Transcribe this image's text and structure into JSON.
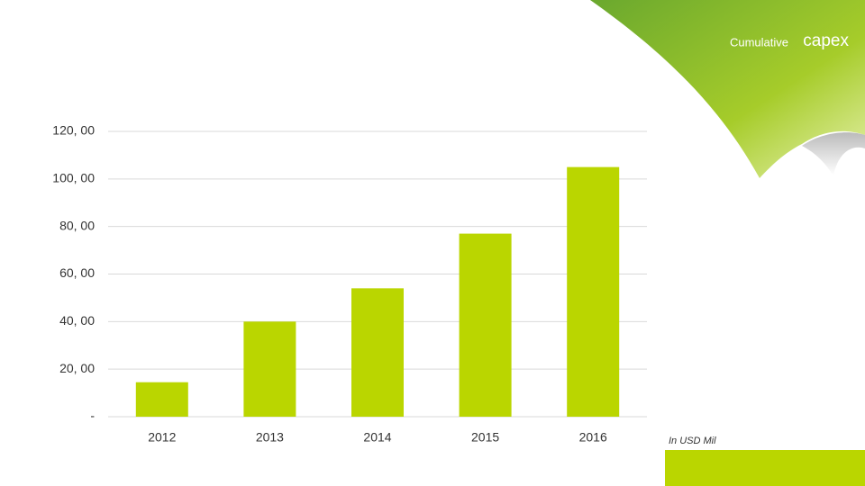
{
  "chart_data": {
    "type": "bar",
    "title": "Cumulative",
    "title_emphasis": "capex",
    "categories": [
      "2012",
      "2013",
      "2014",
      "2015",
      "2016"
    ],
    "values": [
      14.5,
      40,
      54,
      77,
      105
    ],
    "color": "#bad600",
    "ylim": [
      0,
      120
    ],
    "yticks": [
      {
        "value": 0,
        "label": "-"
      },
      {
        "value": 20,
        "label": "20, 00"
      },
      {
        "value": 40,
        "label": "40, 00"
      },
      {
        "value": 60,
        "label": "60, 00"
      },
      {
        "value": 80,
        "label": "80, 00"
      },
      {
        "value": 100,
        "label": "100, 00"
      },
      {
        "value": 120,
        "label": "120, 00"
      }
    ],
    "grid": true,
    "note": "In USD Mil"
  }
}
